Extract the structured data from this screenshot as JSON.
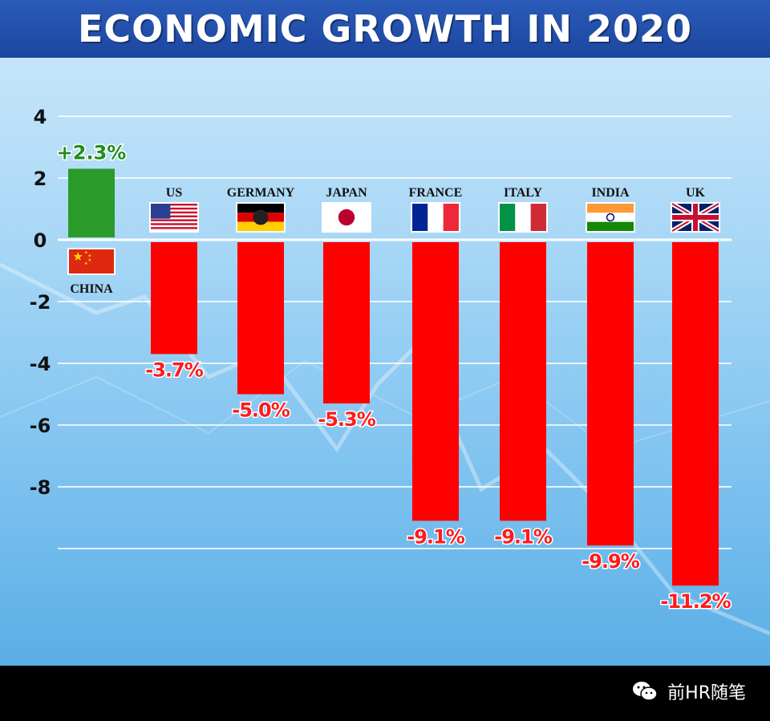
{
  "title": "ECONOMIC GROWTH IN 2020",
  "watermark": "前HR随笔",
  "colors": {
    "positive": "#2a9a2a",
    "negative": "#ff0000",
    "negative_label": "#ff1a1a",
    "positive_label": "#1f8f1f",
    "grid": "#ffffff",
    "axis_text": "#111111"
  },
  "chart_data": {
    "type": "bar",
    "title": "ECONOMIC GROWTH IN 2020",
    "xlabel": "",
    "ylabel": "",
    "ylim": [
      -11.2,
      4
    ],
    "yticks": [
      4,
      2,
      0,
      -2,
      -4,
      -6,
      -8
    ],
    "grid": true,
    "categories": [
      "CHINA",
      "US",
      "GERMANY",
      "JAPAN",
      "FRANCE",
      "ITALY",
      "INDIA",
      "UK"
    ],
    "values": [
      2.3,
      -3.7,
      -5.0,
      -5.3,
      -9.1,
      -9.1,
      -9.9,
      -11.2
    ],
    "value_labels": [
      "+2.3%",
      "-3.7%",
      "-5.0%",
      "-5.3%",
      "-9.1%",
      "-9.1%",
      "-9.9%",
      "-11.2%"
    ],
    "flags": [
      "china-flag-icon",
      "us-flag-icon",
      "germany-flag-icon",
      "japan-flag-icon",
      "france-flag-icon",
      "italy-flag-icon",
      "india-flag-icon",
      "uk-flag-icon"
    ]
  }
}
